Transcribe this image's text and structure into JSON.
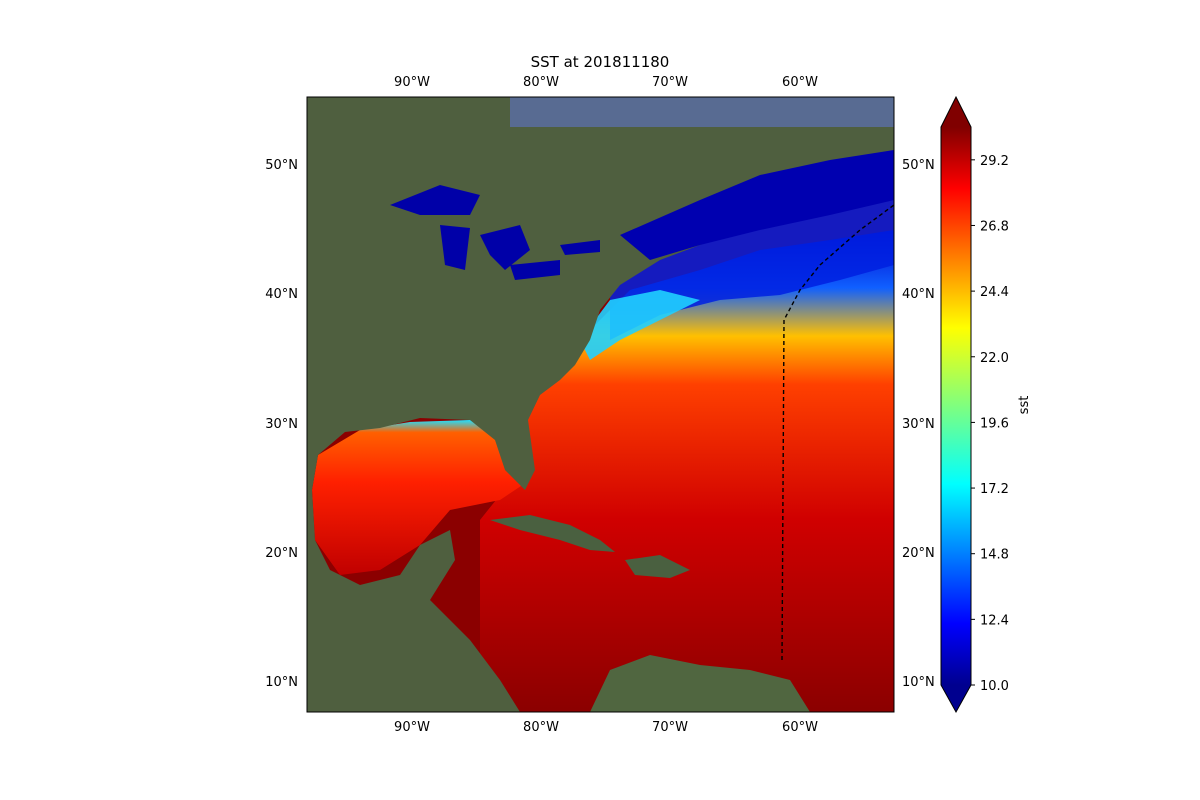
{
  "title": "SST at 201811180",
  "map": {
    "lon_ticks": [
      "90°W",
      "80°W",
      "70°W",
      "60°W"
    ],
    "lat_ticks": [
      "50°N",
      "40°N",
      "30°N",
      "20°N",
      "10°N"
    ],
    "lon_range": [
      -97.5,
      -52.5
    ],
    "lat_range": [
      8,
      55
    ],
    "basemap": "satellite imagery",
    "track_style": "black dashed line"
  },
  "colorbar": {
    "label": "sst",
    "colormap": "jet",
    "extend": "both",
    "range": [
      10.0,
      30.4
    ],
    "ticks": [
      "29.2",
      "26.8",
      "24.4",
      "22.0",
      "19.6",
      "17.2",
      "14.8",
      "12.4",
      "10.0"
    ]
  },
  "colors": {
    "land": "#4f5f3f",
    "ocean_warm": "#8b0000",
    "lakes": "#0000a8"
  }
}
